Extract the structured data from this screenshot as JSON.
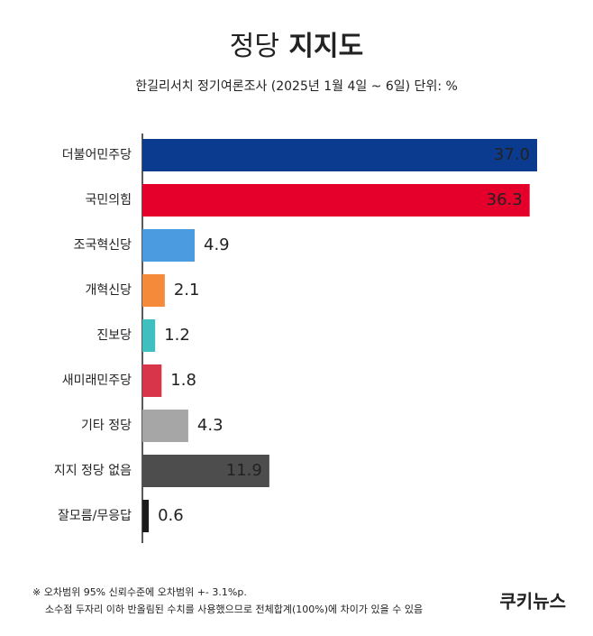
{
  "chart_data": {
    "type": "bar",
    "orientation": "horizontal",
    "title": "정당 지지도",
    "subtitle": "한길리서치 정기여론조사 (2025년 1월 4일 ~ 6일) 단위: %",
    "categories": [
      "더불어민주당",
      "국민의힘",
      "조국혁신당",
      "개혁신당",
      "진보당",
      "새미래민주당",
      "기타 정당",
      "지지 정당 없음",
      "잘모름/무응답"
    ],
    "values": [
      37.0,
      36.3,
      4.9,
      2.1,
      1.2,
      1.8,
      4.3,
      11.9,
      0.6
    ],
    "value_labels": [
      "37.0",
      "36.3",
      "4.9",
      "2.1",
      "1.2",
      "1.8",
      "4.3",
      "11.9",
      "0.6"
    ],
    "colors": [
      "#0b3b8f",
      "#e4002b",
      "#4a9be0",
      "#f58a3b",
      "#3fbfbf",
      "#d9354a",
      "#a6a6a6",
      "#4d4d4d",
      "#1a1a1a"
    ],
    "footnotes": [
      "※ 오차범위 95% 신뢰수준에 오차범위 +- 3.1%p.",
      "소수점 두자리 이하 반올림된 수치를 사용했으므로 전체합계(100%)에 차이가 있을 수 있음"
    ],
    "source": "쿠키뉴스"
  }
}
